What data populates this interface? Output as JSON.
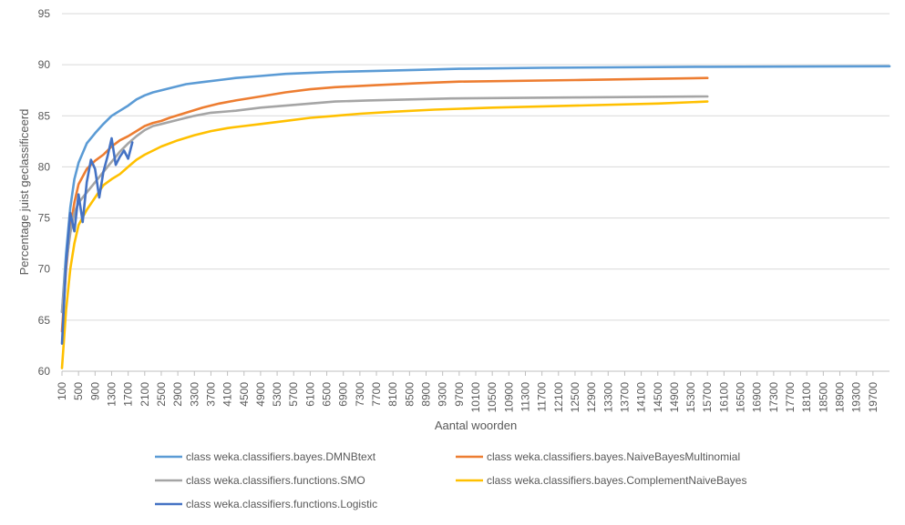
{
  "chart_data": {
    "type": "line",
    "xlabel": "Aantal woorden",
    "ylabel": "Percentage juist geclassificeerd",
    "ylim": [
      60,
      95
    ],
    "yticks": [
      60,
      65,
      70,
      75,
      80,
      85,
      90,
      95
    ],
    "xlim": [
      100,
      20100
    ],
    "xticks": [
      100,
      500,
      900,
      1300,
      1700,
      2100,
      2500,
      2900,
      3300,
      3700,
      4100,
      4500,
      4900,
      5300,
      5700,
      6100,
      6500,
      6900,
      7300,
      7700,
      8100,
      8500,
      8900,
      9300,
      9700,
      10100,
      10500,
      10900,
      11300,
      11700,
      12100,
      12500,
      12900,
      13300,
      13700,
      14100,
      14500,
      14900,
      15300,
      15700,
      16100,
      16500,
      16900,
      17300,
      17700,
      18100,
      18500,
      18900,
      19300,
      19700
    ],
    "grid": "horizontal",
    "legend_position": "bottom",
    "series": [
      {
        "name": "class weka.classifiers.bayes.DMNBtext",
        "color": "#5B9BD5",
        "points": [
          [
            100,
            65.8
          ],
          [
            200,
            71.5
          ],
          [
            300,
            76
          ],
          [
            400,
            78.8
          ],
          [
            500,
            80.4
          ],
          [
            700,
            82.3
          ],
          [
            900,
            83.3
          ],
          [
            1100,
            84.2
          ],
          [
            1300,
            85
          ],
          [
            1500,
            85.5
          ],
          [
            1700,
            86
          ],
          [
            1900,
            86.6
          ],
          [
            2100,
            87
          ],
          [
            2300,
            87.3
          ],
          [
            2500,
            87.5
          ],
          [
            2700,
            87.7
          ],
          [
            2900,
            87.9
          ],
          [
            3100,
            88.1
          ],
          [
            3500,
            88.3
          ],
          [
            3900,
            88.5
          ],
          [
            4300,
            88.7
          ],
          [
            4900,
            88.9
          ],
          [
            5500,
            89.1
          ],
          [
            6100,
            89.2
          ],
          [
            6700,
            89.3
          ],
          [
            7700,
            89.4
          ],
          [
            8700,
            89.5
          ],
          [
            9700,
            89.6
          ],
          [
            11700,
            89.7
          ],
          [
            15700,
            89.8
          ],
          [
            20100,
            89.85
          ]
        ]
      },
      {
        "name": "class weka.classifiers.bayes.NaiveBayesMultinomial",
        "color": "#ED7D31",
        "points": [
          [
            100,
            63.9
          ],
          [
            200,
            70
          ],
          [
            300,
            74
          ],
          [
            400,
            76.5
          ],
          [
            500,
            78.3
          ],
          [
            700,
            79.8
          ],
          [
            900,
            80.6
          ],
          [
            1100,
            81.2
          ],
          [
            1300,
            82
          ],
          [
            1500,
            82.6
          ],
          [
            1700,
            83
          ],
          [
            1900,
            83.5
          ],
          [
            2100,
            84
          ],
          [
            2300,
            84.3
          ],
          [
            2500,
            84.5
          ],
          [
            2700,
            84.8
          ],
          [
            3100,
            85.3
          ],
          [
            3500,
            85.8
          ],
          [
            3900,
            86.2
          ],
          [
            4300,
            86.5
          ],
          [
            4900,
            86.9
          ],
          [
            5500,
            87.3
          ],
          [
            6100,
            87.6
          ],
          [
            6700,
            87.8
          ],
          [
            7700,
            88.0
          ],
          [
            8700,
            88.2
          ],
          [
            9700,
            88.35
          ],
          [
            12500,
            88.5
          ],
          [
            15700,
            88.7
          ]
        ]
      },
      {
        "name": "class weka.classifiers.functions.SMO",
        "color": "#A5A5A5",
        "points": [
          [
            100,
            65.8
          ],
          [
            200,
            70.5
          ],
          [
            300,
            73.5
          ],
          [
            400,
            75.5
          ],
          [
            500,
            76.5
          ],
          [
            700,
            77.5
          ],
          [
            900,
            78.5
          ],
          [
            1100,
            79.5
          ],
          [
            1300,
            80.5
          ],
          [
            1500,
            81.5
          ],
          [
            1700,
            82.3
          ],
          [
            1900,
            83
          ],
          [
            2100,
            83.6
          ],
          [
            2300,
            84
          ],
          [
            2500,
            84.2
          ],
          [
            2900,
            84.6
          ],
          [
            3300,
            85
          ],
          [
            3700,
            85.3
          ],
          [
            4300,
            85.5
          ],
          [
            4900,
            85.8
          ],
          [
            5500,
            86
          ],
          [
            6100,
            86.2
          ],
          [
            6700,
            86.4
          ],
          [
            7500,
            86.5
          ],
          [
            8500,
            86.6
          ],
          [
            9500,
            86.7
          ],
          [
            12500,
            86.8
          ],
          [
            15700,
            86.9
          ]
        ]
      },
      {
        "name": "class weka.classifiers.bayes.ComplementNaiveBayes",
        "color": "#FFC000",
        "points": [
          [
            100,
            60.3
          ],
          [
            200,
            66
          ],
          [
            300,
            70
          ],
          [
            400,
            72.5
          ],
          [
            500,
            74.3
          ],
          [
            700,
            75.8
          ],
          [
            900,
            77
          ],
          [
            1100,
            78.2
          ],
          [
            1300,
            78.8
          ],
          [
            1500,
            79.3
          ],
          [
            1700,
            80
          ],
          [
            1900,
            80.7
          ],
          [
            2100,
            81.2
          ],
          [
            2300,
            81.6
          ],
          [
            2500,
            82
          ],
          [
            2900,
            82.6
          ],
          [
            3300,
            83.1
          ],
          [
            3700,
            83.5
          ],
          [
            4100,
            83.8
          ],
          [
            4500,
            84
          ],
          [
            4900,
            84.2
          ],
          [
            5500,
            84.5
          ],
          [
            6100,
            84.8
          ],
          [
            6700,
            85
          ],
          [
            7300,
            85.2
          ],
          [
            8100,
            85.4
          ],
          [
            9100,
            85.6
          ],
          [
            10500,
            85.8
          ],
          [
            12500,
            86.0
          ],
          [
            14500,
            86.2
          ],
          [
            15700,
            86.4
          ]
        ]
      },
      {
        "name": "class weka.classifiers.functions.Logistic",
        "color": "#4472C4",
        "points": [
          [
            100,
            62.7
          ],
          [
            200,
            70.5
          ],
          [
            300,
            75.5
          ],
          [
            400,
            73.7
          ],
          [
            500,
            77.3
          ],
          [
            600,
            74.6
          ],
          [
            700,
            78.5
          ],
          [
            800,
            80.7
          ],
          [
            900,
            79.8
          ],
          [
            1000,
            77
          ],
          [
            1100,
            79.5
          ],
          [
            1200,
            81
          ],
          [
            1300,
            82.8
          ],
          [
            1400,
            80.2
          ],
          [
            1500,
            81
          ],
          [
            1600,
            81.6
          ],
          [
            1700,
            80.8
          ],
          [
            1800,
            82.4
          ]
        ]
      }
    ]
  }
}
